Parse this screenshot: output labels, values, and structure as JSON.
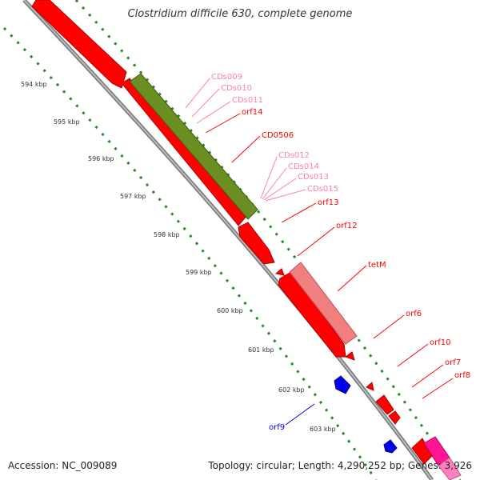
{
  "title": "Clostridium difficile 630, complete genome",
  "footer": {
    "accession": "Accession: NC_009089",
    "summary": "Topology: circular; Length: 4,290,252 bp; Genes: 3,926"
  },
  "colors": {
    "cds": "#ff0000",
    "pseudo": "#ff80a0",
    "rna": "#6b8e23",
    "mobile": "#f08080",
    "other_strand": "#0000ee",
    "magenta": "#ff1493",
    "backbone": "#999999",
    "tick": "#228b22"
  },
  "ticks": [
    "594 kbp",
    "595 kbp",
    "596 kbp",
    "597 kbp",
    "598 kbp",
    "599 kbp",
    "600 kbp",
    "601 kbp",
    "602 kbp",
    "603 kbp"
  ],
  "labels": [
    {
      "text": "CDs009",
      "kind": "pseudo"
    },
    {
      "text": "CDs010",
      "kind": "pseudo"
    },
    {
      "text": "CDs011",
      "kind": "pseudo"
    },
    {
      "text": "orf14",
      "kind": "cds"
    },
    {
      "text": "CD0506",
      "kind": "cds"
    },
    {
      "text": "CDs012",
      "kind": "pseudo"
    },
    {
      "text": "CDs014",
      "kind": "pseudo"
    },
    {
      "text": "CDs013",
      "kind": "pseudo"
    },
    {
      "text": "CDs015",
      "kind": "pseudo"
    },
    {
      "text": "orf13",
      "kind": "cds"
    },
    {
      "text": "orf12",
      "kind": "cds"
    },
    {
      "text": "tetM",
      "kind": "cds"
    },
    {
      "text": "orf6",
      "kind": "cds"
    },
    {
      "text": "orf10",
      "kind": "cds"
    },
    {
      "text": "orf7",
      "kind": "cds"
    },
    {
      "text": "orf8",
      "kind": "cds"
    },
    {
      "text": "orf9",
      "kind": "other"
    }
  ]
}
